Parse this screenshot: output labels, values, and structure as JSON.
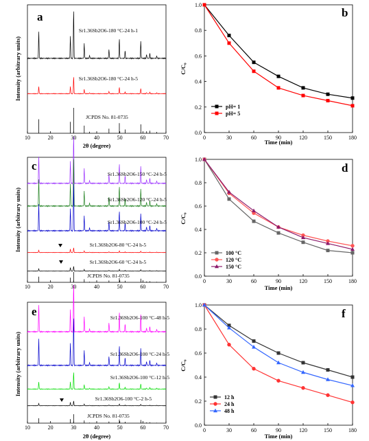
{
  "figure": {
    "panels": [
      {
        "letter": "a",
        "kind": "xrd",
        "xlabel": "2θ (degree)",
        "ylabel": "Intensity (arbitrary units)",
        "xticks": [
          "10",
          "20",
          "30",
          "40",
          "50",
          "60",
          "70"
        ],
        "traces": [
          {
            "label": "Sr1.36Sb2O6-180 °C-24 h-1",
            "color": "#000000"
          },
          {
            "label": "Sr1.36Sb2O6-180 °C-24 h-5",
            "color": "#ff0000"
          }
        ],
        "reference": "JCPDS No. 81-0735"
      },
      {
        "letter": "b",
        "kind": "kinetics",
        "xlabel": "Time (min)",
        "ylabel": "C/C₀",
        "xticks": [
          "0",
          "30",
          "60",
          "90",
          "120",
          "150",
          "180"
        ],
        "yticks": [
          "0.0",
          "0.2",
          "0.4",
          "0.6",
          "0.8",
          "1.0"
        ]
      },
      {
        "letter": "c",
        "kind": "xrd",
        "xlabel": "2θ (degree)",
        "ylabel": "Intensity (arbitrary units)",
        "xticks": [
          "10",
          "20",
          "30",
          "40",
          "50",
          "60",
          "70"
        ],
        "traces": [
          {
            "label": "Sr1.36Sb2O6-150 °C-24 h-5",
            "color": "#9b30ff"
          },
          {
            "label": "Sr1.36Sb2O6-120 °C-24 h-5",
            "color": "#1a7d1a"
          },
          {
            "label": "Sr1.36Sb2O6-100 °C-24 h-5",
            "color": "#0000cc"
          },
          {
            "label": "Sr1.36Sb2O6-80 °C-24 h-5",
            "color": "#ff0000"
          },
          {
            "label": "Sr1.36Sb2O6-60 °C-24 h-5",
            "color": "#000000"
          }
        ],
        "reference": "JCPDS No. 81-0735"
      },
      {
        "letter": "d",
        "kind": "kinetics",
        "xlabel": "Time (min)",
        "ylabel": "C/C₀",
        "xticks": [
          "0",
          "30",
          "60",
          "90",
          "120",
          "150",
          "180"
        ],
        "yticks": [
          "0.0",
          "0.2",
          "0.4",
          "0.6",
          "0.8",
          "1.0"
        ]
      },
      {
        "letter": "e",
        "kind": "xrd",
        "xlabel": "2θ (degree)",
        "ylabel": "Intensity (arbitrary units)",
        "xticks": [
          "10",
          "20",
          "30",
          "40",
          "50",
          "60",
          "70"
        ],
        "traces": [
          {
            "label": "Sr1.36Sb2O6-100 °C-48 h-5",
            "color": "#ff00ff"
          },
          {
            "label": "Sr1.36Sb2O6-100 °C-24 h-5",
            "color": "#0000cc"
          },
          {
            "label": "Sr1.36Sb2O6-100 °C-12 h-5",
            "color": "#00dd00"
          },
          {
            "label": "Sr1.36Sb2O6-100 °C-2 h-5",
            "color": "#000000"
          }
        ],
        "reference": "JCPDS No. 81-0735"
      },
      {
        "letter": "f",
        "kind": "kinetics",
        "xlabel": "Time (min)",
        "ylabel": "C/C₀",
        "xticks": [
          "0",
          "30",
          "60",
          "90",
          "120",
          "150",
          "180"
        ],
        "yticks": [
          "0.0",
          "0.2",
          "0.4",
          "0.6",
          "0.8",
          "1.0"
        ]
      }
    ]
  },
  "chart_data": [
    {
      "type": "line",
      "panel": "b",
      "xlabel": "Time (min)",
      "ylabel": "C/C₀",
      "xlim": [
        0,
        180
      ],
      "ylim": [
        0,
        1.0
      ],
      "x": [
        0,
        30,
        60,
        90,
        120,
        150,
        180
      ],
      "legend_position": "bottom-left",
      "series": [
        {
          "name": "pH= 1",
          "color": "#000000",
          "marker": "square",
          "values": [
            1.0,
            0.76,
            0.55,
            0.44,
            0.35,
            0.3,
            0.27
          ]
        },
        {
          "name": "pH= 5",
          "color": "#ff0000",
          "marker": "square",
          "values": [
            1.0,
            0.7,
            0.48,
            0.35,
            0.29,
            0.25,
            0.21
          ]
        }
      ]
    },
    {
      "type": "line",
      "panel": "d",
      "xlabel": "Time (min)",
      "ylabel": "C/C₀",
      "xlim": [
        0,
        180
      ],
      "ylim": [
        0,
        1.0
      ],
      "x": [
        0,
        30,
        60,
        90,
        120,
        150,
        180
      ],
      "legend_position": "bottom-left",
      "series": [
        {
          "name": "100 °C",
          "color": "#666666",
          "marker": "square",
          "values": [
            1.0,
            0.66,
            0.47,
            0.37,
            0.29,
            0.22,
            0.2
          ]
        },
        {
          "name": "120 °C",
          "color": "#ff5555",
          "marker": "circle",
          "values": [
            1.0,
            0.71,
            0.54,
            0.42,
            0.35,
            0.3,
            0.26
          ]
        },
        {
          "name": "150 °C",
          "color": "#8b1a6b",
          "marker": "triangle",
          "values": [
            1.0,
            0.72,
            0.56,
            0.42,
            0.33,
            0.28,
            0.23
          ]
        }
      ]
    },
    {
      "type": "line",
      "panel": "f",
      "xlabel": "Time (min)",
      "ylabel": "C/C₀",
      "xlim": [
        0,
        180
      ],
      "ylim": [
        0,
        1.0
      ],
      "x": [
        0,
        30,
        60,
        90,
        120,
        150,
        180
      ],
      "legend_position": "bottom-left",
      "series": [
        {
          "name": "12 h",
          "color": "#333333",
          "marker": "square",
          "values": [
            1.0,
            0.83,
            0.7,
            0.6,
            0.52,
            0.46,
            0.4
          ]
        },
        {
          "name": "24 h",
          "color": "#ff3333",
          "marker": "circle",
          "values": [
            1.0,
            0.67,
            0.47,
            0.37,
            0.31,
            0.25,
            0.19
          ]
        },
        {
          "name": "48 h",
          "color": "#3366ff",
          "marker": "triangle",
          "values": [
            1.0,
            0.81,
            0.65,
            0.52,
            0.44,
            0.38,
            0.33
          ]
        }
      ]
    }
  ]
}
